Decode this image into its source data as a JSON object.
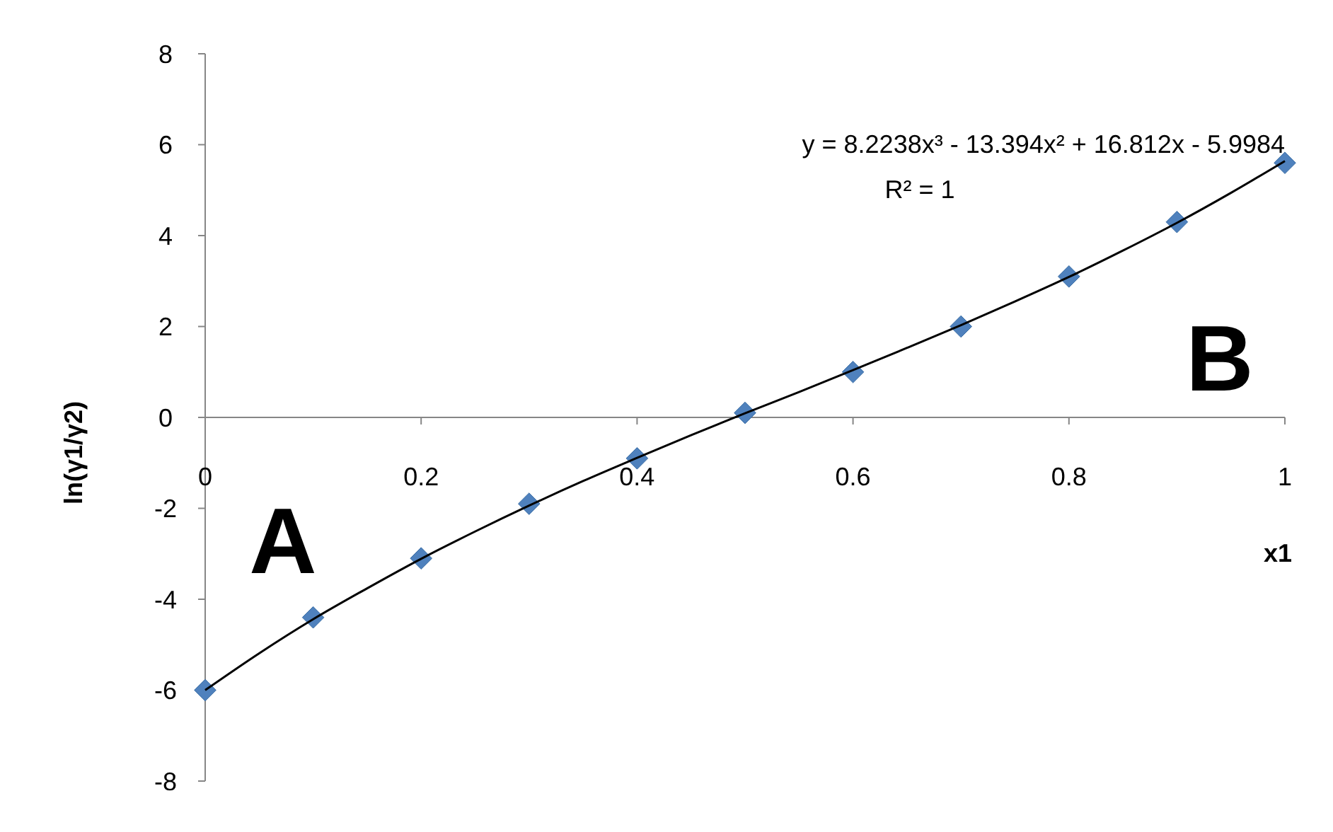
{
  "chart_data": {
    "type": "scatter",
    "xlabel": "x1",
    "ylabel": "ln(γ1/γ2)",
    "x": [
      0,
      0.1,
      0.2,
      0.3,
      0.4,
      0.5,
      0.6,
      0.7,
      0.8,
      0.9,
      1
    ],
    "series": [
      {
        "color": "#4f81bd",
        "marker": "diamond",
        "values": [
          -6.0,
          -4.4,
          -3.1,
          -1.9,
          -0.9,
          0.1,
          1.0,
          2.0,
          3.1,
          4.3,
          5.6
        ]
      },
      {
        "type": "line",
        "color": "#000000",
        "marker": "none",
        "line_style": "solid",
        "x": [
          0,
          0.05,
          0.1,
          0.15,
          0.2,
          0.25,
          0.3,
          0.35,
          0.4,
          0.45,
          0.5,
          0.55,
          0.6,
          0.65,
          0.7,
          0.75,
          0.8,
          0.85,
          0.9,
          0.95,
          1
        ],
        "values": [
          -6.0,
          -5.19,
          -4.44,
          -3.76,
          -3.11,
          -2.51,
          -1.94,
          -1.4,
          -0.89,
          -0.39,
          0.09,
          0.56,
          1.04,
          1.53,
          2.03,
          2.55,
          3.09,
          3.67,
          4.28,
          4.94,
          5.64
        ]
      }
    ],
    "xlim": [
      0,
      1
    ],
    "xticks": [
      0,
      0.2,
      0.4,
      0.6,
      0.8,
      1
    ],
    "ylim": [
      -8,
      8
    ],
    "yticks": [
      -8,
      -6,
      -4,
      -2,
      0,
      2,
      4,
      6,
      8
    ],
    "grid": false,
    "annotations": [
      "y = 8.2238x³ - 13.394x² + 16.812x - 5.9984",
      "R² = 1",
      "A",
      "B"
    ]
  }
}
